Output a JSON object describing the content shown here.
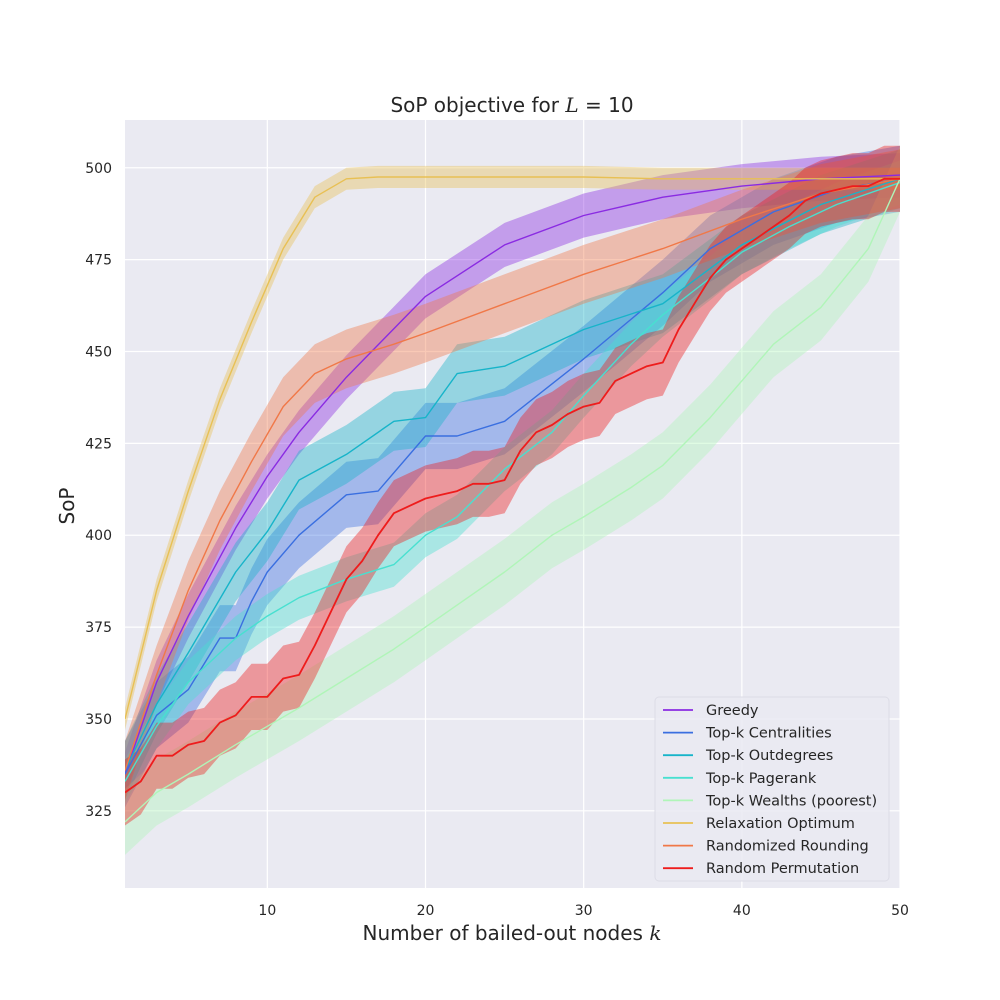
{
  "chart_data": {
    "type": "line",
    "title_prefix": "SoP objective for ",
    "title_var": "L",
    "title_suffix": " = 10",
    "xlabel_prefix": "Number of bailed-out nodes ",
    "xlabel_var": "k",
    "ylabel": "SoP",
    "xlim": [
      1,
      50
    ],
    "ylim": [
      304,
      513
    ],
    "xticks": [
      10,
      20,
      30,
      40,
      50
    ],
    "yticks": [
      325,
      350,
      375,
      400,
      425,
      450,
      475,
      500
    ],
    "grid": true,
    "background": "#eaeaf2",
    "legend_position": "lower-right",
    "series": [
      {
        "name": "Greedy",
        "color": "#8a2be2",
        "x": [
          1,
          3,
          5,
          8,
          10,
          12,
          15,
          20,
          25,
          30,
          35,
          40,
          45,
          50
        ],
        "y": [
          335,
          360,
          378,
          402,
          416,
          428,
          443,
          465,
          479,
          487,
          492,
          495,
          497,
          498
        ],
        "band": 6
      },
      {
        "name": "Top-k Centralities",
        "color": "#3a6fe0",
        "x": [
          1,
          3,
          5,
          7,
          8,
          9,
          10,
          12,
          15,
          17,
          20,
          22,
          25,
          30,
          35,
          38,
          42,
          46,
          50
        ],
        "y": [
          335,
          351,
          358,
          372,
          372,
          382,
          390,
          400,
          411,
          412,
          427,
          427,
          431,
          448,
          466,
          478,
          488,
          494,
          497
        ],
        "band": 9
      },
      {
        "name": "Top-k Outdegrees",
        "color": "#17b4c9",
        "x": [
          1,
          3,
          5,
          8,
          10,
          12,
          15,
          18,
          20,
          22,
          25,
          28,
          30,
          35,
          40,
          45,
          50
        ],
        "y": [
          336,
          354,
          368,
          390,
          401,
          415,
          422,
          431,
          432,
          444,
          446,
          452,
          456,
          463,
          479,
          490,
          497
        ],
        "band": 8
      },
      {
        "name": "Top-k Pagerank",
        "color": "#48e0d0",
        "x": [
          1,
          3,
          5,
          8,
          10,
          12,
          15,
          18,
          20,
          22,
          25,
          28,
          30,
          33,
          35,
          38,
          40,
          43,
          46,
          50
        ],
        "y": [
          333,
          348,
          360,
          372,
          378,
          383,
          388,
          392,
          400,
          405,
          418,
          428,
          438,
          452,
          460,
          470,
          477,
          484,
          490,
          496
        ],
        "band": 6
      },
      {
        "name": "Top-k Wealths (poorest)",
        "color": "#b0f5b8",
        "x": [
          1,
          3,
          5,
          8,
          10,
          12,
          15,
          18,
          20,
          22,
          25,
          28,
          30,
          33,
          35,
          38,
          40,
          42,
          45,
          48,
          50
        ],
        "y": [
          322,
          330,
          335,
          343,
          348,
          353,
          361,
          369,
          375,
          381,
          390,
          400,
          405,
          413,
          419,
          432,
          442,
          452,
          462,
          478,
          497
        ],
        "band": 9
      },
      {
        "name": "Relaxation Optimum",
        "color": "#e8c054",
        "x": [
          1,
          3,
          5,
          7,
          9,
          11,
          13,
          15,
          17,
          20,
          25,
          30,
          35,
          40,
          45,
          50
        ],
        "y": [
          350,
          385,
          412,
          437,
          458,
          478,
          492,
          497,
          497.5,
          497.5,
          497.5,
          497.5,
          497,
          497,
          497,
          497
        ],
        "band": 3
      },
      {
        "name": "Randomized Rounding",
        "color": "#f07848",
        "x": [
          1,
          3,
          5,
          7,
          9,
          11,
          13,
          15,
          18,
          20,
          25,
          30,
          35,
          40,
          45,
          50
        ],
        "y": [
          336,
          362,
          385,
          404,
          420,
          435,
          444,
          448,
          452,
          455,
          463,
          471,
          478,
          486,
          493,
          497
        ],
        "band": 8
      },
      {
        "name": "Random Permutation",
        "color": "#ee1c1c",
        "x": [
          1,
          2,
          3,
          4,
          5,
          6,
          7,
          8,
          9,
          10,
          11,
          12,
          13,
          14,
          15,
          16,
          17,
          18,
          19,
          20,
          21,
          22,
          23,
          24,
          25,
          26,
          27,
          28,
          29,
          30,
          31,
          32,
          33,
          34,
          35,
          36,
          37,
          38,
          39,
          40,
          41,
          42,
          43,
          44,
          45,
          46,
          47,
          48,
          49,
          50
        ],
        "y": [
          330,
          333,
          340,
          340,
          343,
          344,
          349,
          351,
          356,
          356,
          361,
          362,
          370,
          379,
          388,
          393,
          400,
          406,
          408,
          410,
          411,
          412,
          414,
          414,
          415,
          423,
          428,
          430,
          433,
          435,
          436,
          442,
          444,
          446,
          447,
          456,
          463,
          470,
          475,
          478,
          481,
          484,
          487,
          491,
          493,
          494,
          495,
          495,
          497,
          497
        ],
        "band": 9
      }
    ]
  }
}
